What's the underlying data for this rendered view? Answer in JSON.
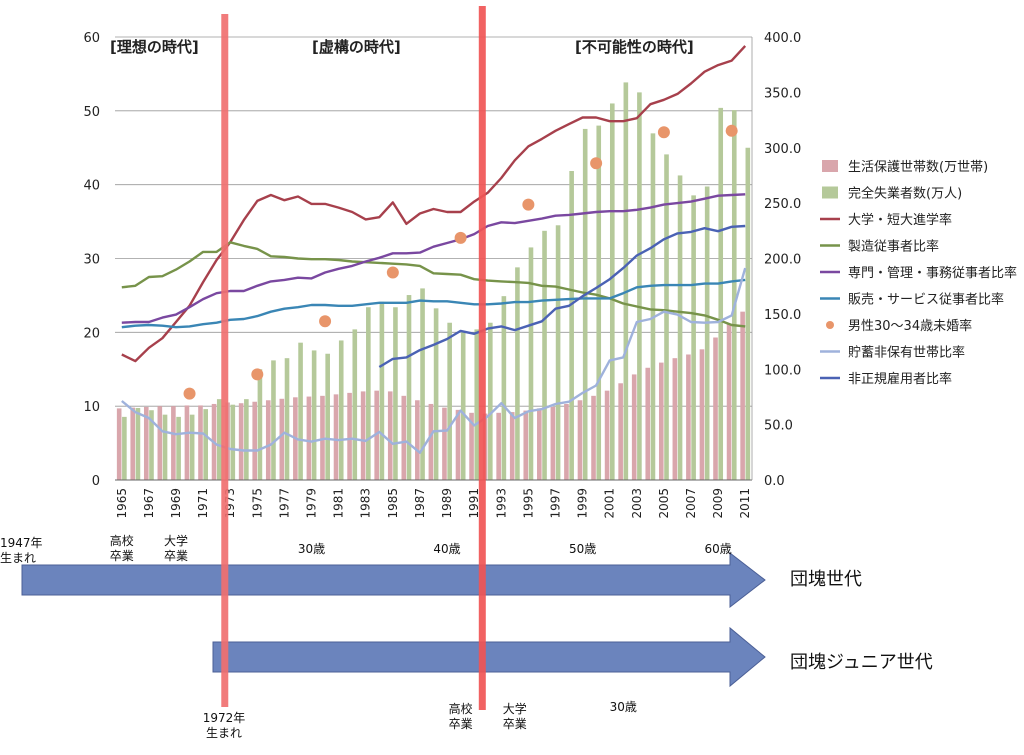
{
  "era_labels": {
    "ideal": "[理想の時代]",
    "fiction": "[虚構の時代]",
    "impossible": "[不可能性の時代]"
  },
  "chart_data": {
    "type": "bar+line",
    "years": [
      1965,
      1966,
      1967,
      1968,
      1969,
      1970,
      1971,
      1972,
      1973,
      1974,
      1975,
      1976,
      1977,
      1978,
      1979,
      1980,
      1981,
      1982,
      1983,
      1984,
      1985,
      1986,
      1987,
      1988,
      1989,
      1990,
      1991,
      1992,
      1993,
      1994,
      1995,
      1996,
      1997,
      1998,
      1999,
      2000,
      2001,
      2002,
      2003,
      2004,
      2005,
      2006,
      2007,
      2008,
      2009,
      2010,
      2011
    ],
    "x_tick_labels": [
      "1965",
      "1967",
      "1969",
      "1971",
      "1973",
      "1975",
      "1977",
      "1979",
      "1981",
      "1983",
      "1985",
      "1987",
      "1989",
      "1991",
      "1993",
      "1995",
      "1997",
      "1999",
      "2001",
      "2003",
      "2005",
      "2007",
      "2009",
      "2011"
    ],
    "y_left": {
      "min": 0,
      "max": 60,
      "ticks": [
        "0",
        "10",
        "20",
        "30",
        "40",
        "50",
        "60"
      ]
    },
    "y_right": {
      "min": 0,
      "max": 400,
      "ticks": [
        "0.0",
        "50.0",
        "100.0",
        "150.0",
        "200.0",
        "250.0",
        "300.0",
        "350.0",
        "400.0"
      ]
    },
    "grid": "horizontal",
    "legend_position": "right",
    "bar_series": [
      {
        "name": "生活保護世帯数(万世帯)",
        "axis": "left",
        "color": "#d9a6ac",
        "values": [
          9.7,
          9.8,
          9.9,
          10.0,
          10.0,
          10.1,
          10.1,
          10.3,
          10.5,
          10.4,
          10.6,
          10.8,
          11.0,
          11.2,
          11.3,
          11.4,
          11.6,
          11.8,
          12.0,
          12.1,
          12.0,
          11.4,
          10.8,
          10.3,
          9.8,
          9.5,
          9.1,
          9.0,
          9.1,
          9.2,
          9.4,
          9.7,
          9.9,
          10.3,
          10.8,
          11.4,
          12.1,
          13.1,
          14.3,
          15.2,
          15.9,
          16.5,
          17.0,
          17.7,
          19.3,
          21.2,
          22.8
        ]
      },
      {
        "name": "完全失業者数(万人)",
        "axis": "right",
        "color": "#b5c99a",
        "values": [
          57,
          65,
          63,
          59,
          57,
          59,
          64,
          73,
          68,
          73,
          100,
          108,
          110,
          124,
          117,
          114,
          126,
          136,
          156,
          161,
          156,
          167,
          173,
          155,
          142,
          134,
          136,
          142,
          166,
          192,
          210,
          225,
          230,
          279,
          317,
          320,
          340,
          359,
          350,
          313,
          294,
          275,
          257,
          265,
          336,
          334,
          300
        ]
      }
    ],
    "line_series": [
      {
        "name": "大学・短大進学率",
        "axis": "left",
        "color": "#a7404c",
        "values": [
          17.0,
          16.1,
          17.9,
          19.2,
          21.4,
          23.6,
          26.8,
          29.8,
          32.2,
          35.2,
          37.8,
          38.6,
          37.9,
          38.4,
          37.4,
          37.4,
          36.9,
          36.3,
          35.3,
          35.6,
          37.6,
          34.7,
          36.1,
          36.7,
          36.3,
          36.3,
          37.7,
          38.9,
          40.9,
          43.3,
          45.2,
          46.2,
          47.3,
          48.2,
          49.1,
          49.1,
          48.6,
          48.6,
          49.0,
          50.9,
          51.5,
          52.3,
          53.7,
          55.3,
          56.2,
          56.8,
          58.8
        ]
      },
      {
        "name": "製造従事者比率",
        "axis": "left",
        "color": "#77934a",
        "values": [
          26.1,
          26.3,
          27.5,
          27.6,
          28.5,
          29.6,
          30.9,
          30.9,
          32.2,
          31.7,
          31.3,
          30.3,
          30.2,
          30.0,
          29.9,
          29.9,
          29.8,
          29.6,
          29.5,
          29.4,
          29.3,
          29.2,
          29.0,
          28.0,
          27.9,
          27.8,
          27.2,
          27.0,
          26.9,
          26.8,
          26.7,
          26.3,
          26.2,
          25.8,
          25.4,
          25.1,
          24.6,
          23.9,
          23.5,
          23.1,
          23.0,
          22.8,
          22.6,
          22.3,
          21.7,
          21.0,
          20.8
        ]
      },
      {
        "name": "専門・管理・事務従事者比率",
        "axis": "left",
        "color": "#7a48a0",
        "values": [
          21.3,
          21.4,
          21.4,
          22.0,
          22.4,
          23.4,
          24.5,
          25.3,
          25.6,
          25.6,
          26.3,
          26.9,
          27.1,
          27.4,
          27.3,
          28.1,
          28.6,
          29.0,
          29.6,
          30.1,
          30.7,
          30.7,
          30.8,
          31.6,
          32.1,
          32.6,
          33.3,
          34.4,
          34.9,
          34.8,
          35.1,
          35.4,
          35.8,
          35.9,
          36.1,
          36.3,
          36.4,
          36.4,
          36.6,
          36.9,
          37.3,
          37.5,
          37.7,
          38.1,
          38.5,
          38.6,
          38.7
        ]
      },
      {
        "name": "販売・サービス従事者比率",
        "axis": "left",
        "color": "#3a86b5",
        "values": [
          20.7,
          20.9,
          21.0,
          20.9,
          20.7,
          20.8,
          21.1,
          21.3,
          21.7,
          21.8,
          22.2,
          22.8,
          23.2,
          23.4,
          23.7,
          23.7,
          23.6,
          23.6,
          23.8,
          24.0,
          24.0,
          24.0,
          24.3,
          24.2,
          24.2,
          24.0,
          23.8,
          23.8,
          23.9,
          24.1,
          24.1,
          24.3,
          24.4,
          24.5,
          24.6,
          24.6,
          24.6,
          25.3,
          26.1,
          26.3,
          26.4,
          26.4,
          26.4,
          26.6,
          26.6,
          26.9,
          27.1
        ]
      },
      {
        "name": "貯蓄非保有世帯比率",
        "axis": "left",
        "color": "#9fb2dc",
        "values": [
          10.7,
          9.2,
          8.4,
          6.6,
          6.2,
          6.4,
          6.3,
          4.8,
          4.2,
          4.0,
          4.0,
          4.8,
          6.4,
          5.5,
          5.2,
          5.6,
          5.4,
          5.6,
          5.3,
          6.5,
          4.9,
          5.2,
          3.7,
          6.6,
          6.7,
          9.4,
          7.4,
          8.6,
          10.4,
          8.4,
          9.3,
          9.6,
          10.3,
          10.6,
          11.8,
          12.8,
          16.2,
          16.6,
          21.4,
          21.8,
          22.8,
          22.4,
          21.4,
          21.3,
          21.4,
          22.3,
          28.7
        ]
      },
      {
        "name": "非正規雇用者比率",
        "axis": "left",
        "color": "#4a62b4",
        "values": [
          null,
          null,
          null,
          null,
          null,
          null,
          null,
          null,
          null,
          null,
          null,
          null,
          null,
          null,
          null,
          null,
          null,
          null,
          null,
          15.3,
          16.4,
          16.6,
          17.6,
          18.3,
          19.1,
          20.2,
          19.8,
          20.5,
          20.8,
          20.3,
          20.9,
          21.5,
          23.2,
          23.6,
          24.9,
          26.0,
          27.2,
          28.7,
          30.4,
          31.4,
          32.6,
          33.4,
          33.6,
          34.1,
          33.7,
          34.3,
          34.4
        ]
      }
    ],
    "scatter_series": [
      {
        "name": "男性30～34歳未婚率",
        "axis": "left",
        "color": "#e8956a",
        "points": [
          [
            1970,
            11.7
          ],
          [
            1975,
            14.3
          ],
          [
            1980,
            21.5
          ],
          [
            1985,
            28.1
          ],
          [
            1990,
            32.8
          ],
          [
            1995,
            37.3
          ],
          [
            2000,
            42.9
          ],
          [
            2005,
            47.1
          ],
          [
            2010,
            47.3
          ]
        ]
      }
    ],
    "vertical_markers": [
      {
        "year": 1972.6,
        "color": "#f07070"
      },
      {
        "year": 1991.6,
        "color": "#f05555"
      }
    ]
  },
  "generations": {
    "dankai": {
      "label": "団塊世代",
      "birth_label": [
        "1947年",
        "生まれ"
      ],
      "milestones": [
        {
          "year": 1965,
          "lines": [
            "高校",
            "卒業"
          ]
        },
        {
          "year": 1969,
          "lines": [
            "大学",
            "卒業"
          ]
        },
        {
          "year": 1979,
          "lines": [
            "30歳"
          ]
        },
        {
          "year": 1989,
          "lines": [
            "40歳"
          ]
        },
        {
          "year": 1999,
          "lines": [
            "50歳"
          ]
        },
        {
          "year": 2009,
          "lines": [
            "60歳"
          ]
        }
      ]
    },
    "junior": {
      "label": "団塊ジュニア世代",
      "birth_label": [
        "1972年",
        "生まれ"
      ],
      "milestones": [
        {
          "year": 1990,
          "lines": [
            "高校",
            "卒業"
          ]
        },
        {
          "year": 1994,
          "lines": [
            "大学",
            "卒業"
          ]
        },
        {
          "year": 2002,
          "lines": [
            "30歳"
          ]
        }
      ]
    }
  }
}
